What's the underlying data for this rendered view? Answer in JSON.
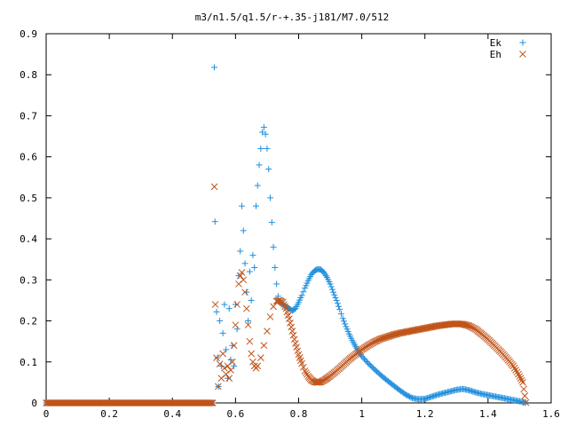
{
  "chart_data": {
    "type": "scatter",
    "title": "m3/n1.5/q1.5/r-+.35-j181/M7.0/512",
    "xlabel": "",
    "ylabel": "",
    "xlim": [
      0,
      1.6
    ],
    "ylim": [
      0,
      0.9
    ],
    "x_ticks": [
      "0",
      "0.2",
      "0.4",
      "0.6",
      "0.8",
      "1",
      "1.2",
      "1.4",
      "1.6"
    ],
    "y_ticks": [
      "0",
      "0.1",
      "0.2",
      "0.3",
      "0.4",
      "0.5",
      "0.6",
      "0.7",
      "0.8",
      "0.9"
    ],
    "grid": false,
    "legend_position": "top-right",
    "series": [
      {
        "name": "Ek",
        "marker": "plus",
        "color": "#1f8fde",
        "points": [
          [
            0.533,
            0.818
          ],
          [
            0.535,
            0.442
          ],
          [
            0.54,
            0.222
          ],
          [
            0.543,
            0.11
          ],
          [
            0.546,
            0.04
          ],
          [
            0.55,
            0.2
          ],
          [
            0.555,
            0.09
          ],
          [
            0.56,
            0.17
          ],
          [
            0.565,
            0.24
          ],
          [
            0.57,
            0.13
          ],
          [
            0.575,
            0.06
          ],
          [
            0.58,
            0.23
          ],
          [
            0.585,
            0.105
          ],
          [
            0.59,
            0.14
          ],
          [
            0.595,
            0.09
          ],
          [
            0.6,
            0.24
          ],
          [
            0.605,
            0.18
          ],
          [
            0.61,
            0.31
          ],
          [
            0.615,
            0.37
          ],
          [
            0.62,
            0.48
          ],
          [
            0.625,
            0.42
          ],
          [
            0.63,
            0.34
          ],
          [
            0.635,
            0.27
          ],
          [
            0.64,
            0.2
          ],
          [
            0.645,
            0.32
          ],
          [
            0.65,
            0.25
          ],
          [
            0.655,
            0.36
          ],
          [
            0.66,
            0.33
          ],
          [
            0.665,
            0.48
          ],
          [
            0.67,
            0.53
          ],
          [
            0.675,
            0.58
          ],
          [
            0.68,
            0.62
          ],
          [
            0.685,
            0.66
          ],
          [
            0.69,
            0.672
          ],
          [
            0.695,
            0.655
          ],
          [
            0.7,
            0.62
          ],
          [
            0.705,
            0.57
          ],
          [
            0.71,
            0.5
          ],
          [
            0.715,
            0.44
          ],
          [
            0.72,
            0.38
          ],
          [
            0.725,
            0.33
          ],
          [
            0.73,
            0.29
          ],
          [
            0.735,
            0.26
          ],
          [
            0.74,
            0.245
          ],
          [
            0.75,
            0.24
          ],
          [
            0.76,
            0.235
          ],
          [
            0.77,
            0.23
          ],
          [
            0.78,
            0.225
          ],
          [
            0.79,
            0.23
          ],
          [
            0.8,
            0.245
          ],
          [
            0.81,
            0.262
          ],
          [
            0.82,
            0.28
          ],
          [
            0.83,
            0.298
          ],
          [
            0.84,
            0.313
          ],
          [
            0.85,
            0.322
          ],
          [
            0.86,
            0.326
          ],
          [
            0.87,
            0.325
          ],
          [
            0.88,
            0.318
          ],
          [
            0.89,
            0.306
          ],
          [
            0.9,
            0.29
          ],
          [
            0.91,
            0.27
          ],
          [
            0.92,
            0.25
          ],
          [
            0.93,
            0.228
          ],
          [
            0.94,
            0.206
          ],
          [
            0.95,
            0.186
          ],
          [
            0.96,
            0.168
          ],
          [
            0.97,
            0.152
          ],
          [
            0.98,
            0.138
          ],
          [
            0.99,
            0.125
          ],
          [
            1.0,
            0.114
          ],
          [
            1.02,
            0.097
          ],
          [
            1.04,
            0.082
          ],
          [
            1.06,
            0.068
          ],
          [
            1.08,
            0.055
          ],
          [
            1.1,
            0.043
          ],
          [
            1.12,
            0.031
          ],
          [
            1.14,
            0.02
          ],
          [
            1.16,
            0.012
          ],
          [
            1.18,
            0.009
          ],
          [
            1.2,
            0.01
          ],
          [
            1.22,
            0.015
          ],
          [
            1.24,
            0.02
          ],
          [
            1.26,
            0.024
          ],
          [
            1.28,
            0.028
          ],
          [
            1.3,
            0.032
          ],
          [
            1.32,
            0.034
          ],
          [
            1.34,
            0.031
          ],
          [
            1.36,
            0.026
          ],
          [
            1.38,
            0.022
          ],
          [
            1.4,
            0.019
          ],
          [
            1.42,
            0.016
          ],
          [
            1.44,
            0.013
          ],
          [
            1.46,
            0.01
          ],
          [
            1.48,
            0.007
          ],
          [
            1.5,
            0.004
          ],
          [
            1.52,
            0.001
          ]
        ]
      },
      {
        "name": "Eh",
        "marker": "cross",
        "color": "#c0541a",
        "points": [
          [
            0.533,
            0.527
          ],
          [
            0.536,
            0.24
          ],
          [
            0.54,
            0.11
          ],
          [
            0.545,
            0.04
          ],
          [
            0.55,
            0.095
          ],
          [
            0.555,
            0.06
          ],
          [
            0.56,
            0.12
          ],
          [
            0.565,
            0.085
          ],
          [
            0.57,
            0.07
          ],
          [
            0.575,
            0.09
          ],
          [
            0.58,
            0.06
          ],
          [
            0.585,
            0.08
          ],
          [
            0.59,
            0.1
          ],
          [
            0.595,
            0.14
          ],
          [
            0.6,
            0.19
          ],
          [
            0.605,
            0.24
          ],
          [
            0.61,
            0.29
          ],
          [
            0.615,
            0.31
          ],
          [
            0.62,
            0.318
          ],
          [
            0.625,
            0.3
          ],
          [
            0.63,
            0.27
          ],
          [
            0.635,
            0.23
          ],
          [
            0.64,
            0.19
          ],
          [
            0.645,
            0.15
          ],
          [
            0.65,
            0.12
          ],
          [
            0.655,
            0.1
          ],
          [
            0.66,
            0.09
          ],
          [
            0.665,
            0.085
          ],
          [
            0.67,
            0.09
          ],
          [
            0.68,
            0.11
          ],
          [
            0.69,
            0.14
          ],
          [
            0.7,
            0.175
          ],
          [
            0.71,
            0.21
          ],
          [
            0.72,
            0.235
          ],
          [
            0.73,
            0.248
          ],
          [
            0.74,
            0.25
          ],
          [
            0.75,
            0.245
          ],
          [
            0.76,
            0.23
          ],
          [
            0.77,
            0.205
          ],
          [
            0.78,
            0.175
          ],
          [
            0.79,
            0.145
          ],
          [
            0.8,
            0.118
          ],
          [
            0.81,
            0.096
          ],
          [
            0.82,
            0.078
          ],
          [
            0.83,
            0.065
          ],
          [
            0.84,
            0.056
          ],
          [
            0.85,
            0.051
          ],
          [
            0.86,
            0.05
          ],
          [
            0.87,
            0.051
          ],
          [
            0.88,
            0.055
          ],
          [
            0.89,
            0.06
          ],
          [
            0.9,
            0.066
          ],
          [
            0.92,
            0.078
          ],
          [
            0.94,
            0.092
          ],
          [
            0.96,
            0.106
          ],
          [
            0.98,
            0.118
          ],
          [
            1.0,
            0.13
          ],
          [
            1.02,
            0.14
          ],
          [
            1.04,
            0.149
          ],
          [
            1.06,
            0.156
          ],
          [
            1.08,
            0.161
          ],
          [
            1.1,
            0.166
          ],
          [
            1.12,
            0.17
          ],
          [
            1.14,
            0.173
          ],
          [
            1.16,
            0.176
          ],
          [
            1.18,
            0.179
          ],
          [
            1.2,
            0.182
          ],
          [
            1.22,
            0.185
          ],
          [
            1.24,
            0.188
          ],
          [
            1.26,
            0.19
          ],
          [
            1.28,
            0.192
          ],
          [
            1.3,
            0.193
          ],
          [
            1.32,
            0.192
          ],
          [
            1.34,
            0.188
          ],
          [
            1.36,
            0.18
          ],
          [
            1.38,
            0.168
          ],
          [
            1.4,
            0.155
          ],
          [
            1.42,
            0.14
          ],
          [
            1.44,
            0.125
          ],
          [
            1.46,
            0.108
          ],
          [
            1.48,
            0.09
          ],
          [
            1.5,
            0.065
          ],
          [
            1.51,
            0.05
          ],
          [
            1.52,
            0.001
          ]
        ]
      }
    ]
  }
}
